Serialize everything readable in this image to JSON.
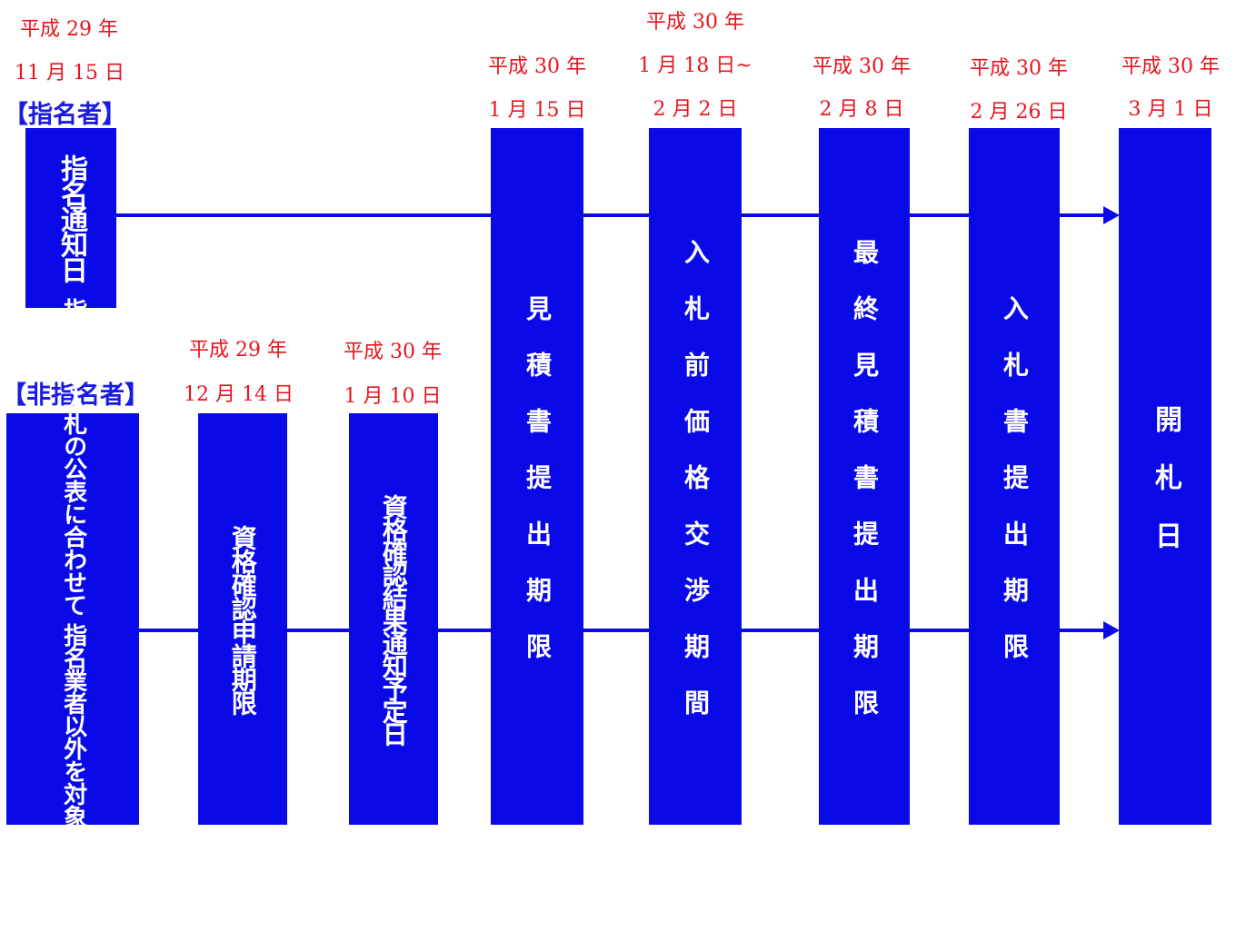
{
  "groups": {
    "nominated": "【指名者】",
    "non_nominated": "【非指名者】"
  },
  "dates": {
    "nominate_notice": {
      "era": "平成 29 年",
      "day": "11 月 15 日"
    },
    "qual_apply": {
      "era": "平成 29 年",
      "day": "12 月 14 日"
    },
    "qual_result": {
      "era": "平成 30 年",
      "day": "1 月 10 日"
    },
    "estimate": {
      "era": "平成 30 年",
      "day": "1 月 15 日"
    },
    "negotiation": {
      "era": "平成 30 年",
      "day": "1 月 18 日~",
      "day2": "2 月 2 日"
    },
    "final_estimate": {
      "era": "平成 30 年",
      "day": "2 月 8 日"
    },
    "bid": {
      "era": "平成 30 年",
      "day": "2 月 26 日"
    },
    "opening": {
      "era": "平成 30 年",
      "day": "3 月 1 日"
    }
  },
  "boxes": {
    "nominate_notice": "指名通知日",
    "public_notice_line1": "指名競争入札の公表に合わせて",
    "public_notice_line2": "指名業者以外を対象に公募開始",
    "qual_apply": "資格確認申請期限",
    "qual_result": "資格確認結果通知予定日",
    "estimate": "見積書提出期限",
    "negotiation": "入札前価格交渉期間",
    "final_estimate": "最終見積書提出期限",
    "bid": "入札書提出期限",
    "opening": "開札日"
  },
  "colors": {
    "box": "#0a0ae8",
    "date_text": "#e8141e",
    "group_label": "#1a1ae6"
  }
}
